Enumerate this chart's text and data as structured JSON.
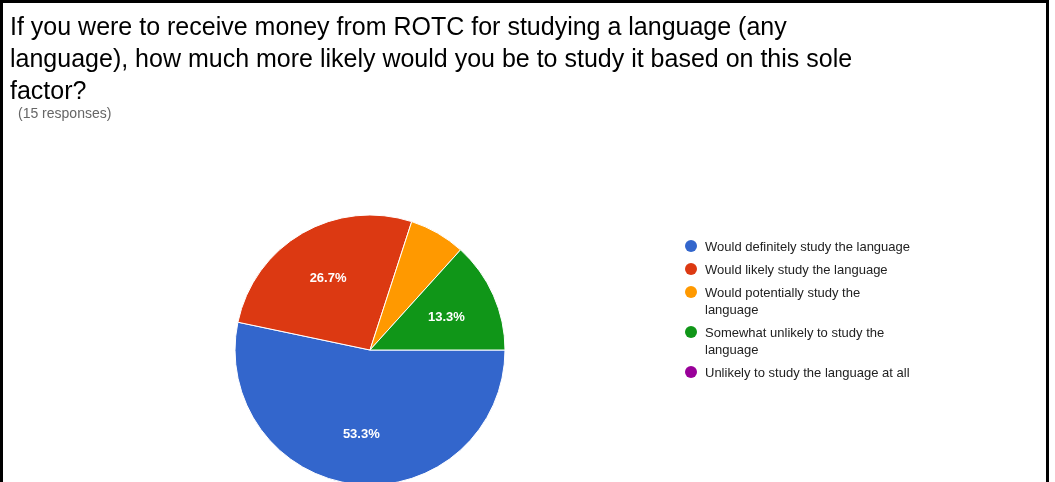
{
  "chart_data": {
    "type": "pie",
    "title": "If you were to receive money from ROTC for studying a language (any language), how much more likely would you be to study it based on this sole factor?",
    "subtitle": "(15 responses)",
    "categories": [
      "Would definitely study the language",
      "Would likely study the language",
      "Would potentially study the language",
      "Somewhat unlikely to study the language",
      "Unlikely to study the language at all"
    ],
    "values": [
      53.3,
      26.7,
      6.7,
      13.3,
      0
    ],
    "colors": [
      "#3366cc",
      "#dc3912",
      "#ff9900",
      "#109618",
      "#990099"
    ],
    "value_labels": [
      "53.3%",
      "26.7%",
      null,
      "13.3%",
      null
    ],
    "legend": "right"
  }
}
